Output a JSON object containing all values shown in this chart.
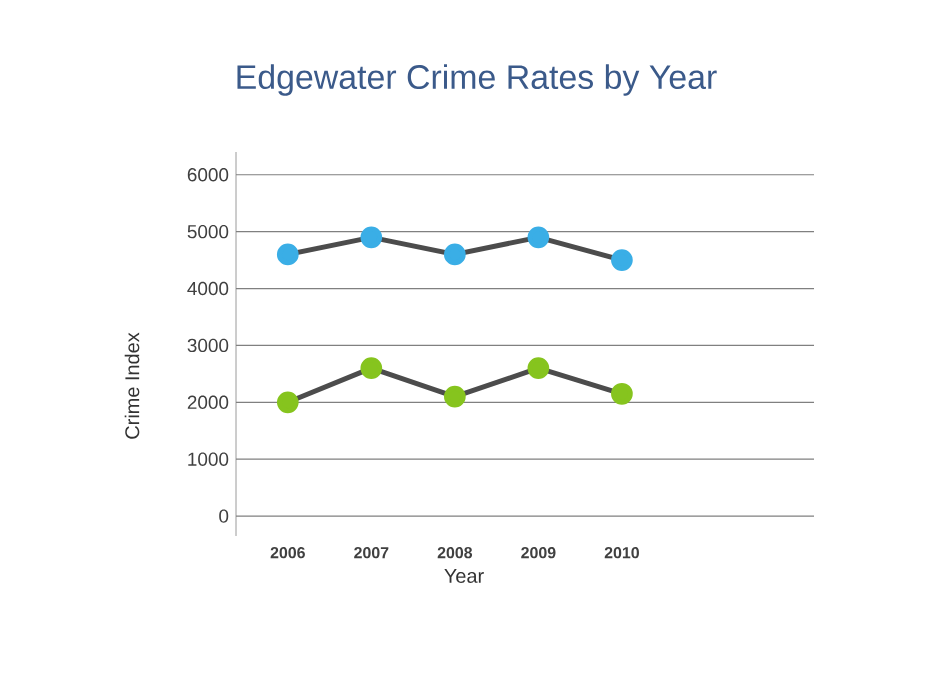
{
  "chart_data": {
    "type": "line",
    "title": "Edgewater Crime Rates by Year",
    "xlabel": "Year",
    "ylabel": "Crime Index",
    "categories": [
      "2006",
      "2007",
      "2008",
      "2009",
      "2010"
    ],
    "series": [
      {
        "color": "#3aaee6",
        "values": [
          4600,
          4900,
          4600,
          4900,
          4500
        ]
      },
      {
        "color": "#86c41e",
        "values": [
          2000,
          2600,
          2100,
          2600,
          2150
        ]
      }
    ],
    "ylim": [
      -350,
      6400
    ],
    "yticks": [
      0,
      1000,
      2000,
      3000,
      4000,
      5000,
      6000
    ],
    "grid": "y",
    "marker": "circle",
    "line_style": "solid"
  }
}
